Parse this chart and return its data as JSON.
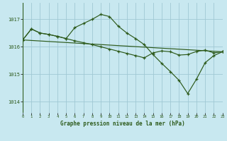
{
  "background_color": "#c8e8f0",
  "grid_color": "#a0c8d4",
  "line_color": "#2d5a1b",
  "title": "Graphe pression niveau de la mer (hPa)",
  "xlim": [
    0,
    23
  ],
  "ylim": [
    1013.6,
    1017.6
  ],
  "yticks": [
    1014,
    1015,
    1016,
    1017
  ],
  "xticks": [
    0,
    1,
    2,
    3,
    4,
    5,
    6,
    7,
    8,
    9,
    10,
    11,
    12,
    13,
    14,
    15,
    16,
    17,
    18,
    19,
    20,
    21,
    22,
    23
  ],
  "line1_x": [
    0,
    1,
    2,
    3,
    4,
    5,
    6,
    7,
    8,
    9,
    10,
    11,
    12,
    13,
    14,
    15,
    16,
    17,
    18,
    19,
    20,
    21,
    22,
    23
  ],
  "line1_y": [
    1016.25,
    1016.65,
    1016.5,
    1016.45,
    1016.38,
    1016.3,
    1016.22,
    1016.15,
    1016.08,
    1016.0,
    1015.92,
    1015.84,
    1015.76,
    1015.68,
    1015.6,
    1015.78,
    1015.85,
    1015.82,
    1015.7,
    1015.72,
    1015.83,
    1015.88,
    1015.78,
    1015.82
  ],
  "line2_x": [
    0,
    1,
    2,
    3,
    4,
    5,
    6,
    7,
    8,
    9,
    10,
    11,
    12,
    13,
    14,
    15,
    16,
    17,
    18,
    19,
    20,
    21,
    22,
    23
  ],
  "line2_y": [
    1016.25,
    1016.65,
    1016.5,
    1016.45,
    1016.38,
    1016.3,
    1016.7,
    1016.85,
    1017.0,
    1017.18,
    1017.1,
    1016.75,
    1016.5,
    1016.3,
    1016.08,
    1015.72,
    1015.4,
    1015.1,
    1014.78,
    1014.3,
    1014.82,
    1015.42,
    1015.68,
    1015.82
  ],
  "line3_x": [
    0,
    23
  ],
  "line3_y": [
    1016.25,
    1015.82
  ]
}
